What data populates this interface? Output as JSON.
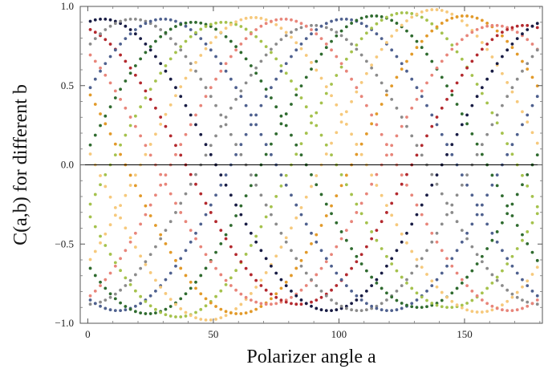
{
  "chart_data": {
    "type": "scatter",
    "title": "",
    "xlabel": "Polarizer angle a",
    "ylabel": "C(a,b) for different b",
    "xlim": [
      -3,
      181
    ],
    "ylim": [
      -1.0,
      1.0
    ],
    "x_ticks": [
      0,
      50,
      100,
      150
    ],
    "x_tick_labels": [
      "0",
      "50",
      "100",
      "150"
    ],
    "y_ticks": [
      -1.0,
      -0.5,
      0.0,
      0.5,
      1.0
    ],
    "y_tick_labels": [
      "−1.0",
      "−0.5",
      "0.0",
      "0.5",
      "1.0"
    ],
    "grid": false,
    "zero_line": true,
    "legend": "none",
    "model": "y = -A*cos(2*(x - b))",
    "x_start": 1,
    "x_end": 179,
    "x_step": 2,
    "series": [
      {
        "b": 0,
        "amplitude": 0.88,
        "color": "#8b8b8b"
      },
      {
        "b": 12,
        "amplitude": 0.92,
        "color": "#4f618f"
      },
      {
        "b": 24,
        "amplitude": 0.94,
        "color": "#2f6b2f"
      },
      {
        "b": 36,
        "amplitude": 0.96,
        "color": "#a5c24d"
      },
      {
        "b": 48,
        "amplitude": 0.98,
        "color": "#f6c97c"
      },
      {
        "b": 60,
        "amplitude": 0.94,
        "color": "#e29a2a"
      },
      {
        "b": 72,
        "amplitude": 0.88,
        "color": "#e8857a"
      },
      {
        "b": 84,
        "amplitude": 0.88,
        "color": "#b3292e"
      },
      {
        "b": 96,
        "amplitude": 0.92,
        "color": "#181c44"
      },
      {
        "b": 108,
        "amplitude": 0.92,
        "color": "#8b8b8b"
      },
      {
        "b": 120,
        "amplitude": 0.92,
        "color": "#4f618f"
      },
      {
        "b": 132,
        "amplitude": 0.9,
        "color": "#2f6b2f"
      },
      {
        "b": 144,
        "amplitude": 0.9,
        "color": "#a5c24d"
      },
      {
        "b": 156,
        "amplitude": 0.93,
        "color": "#f6c97c"
      },
      {
        "b": 168,
        "amplitude": 0.92,
        "color": "#e8857a"
      }
    ]
  }
}
